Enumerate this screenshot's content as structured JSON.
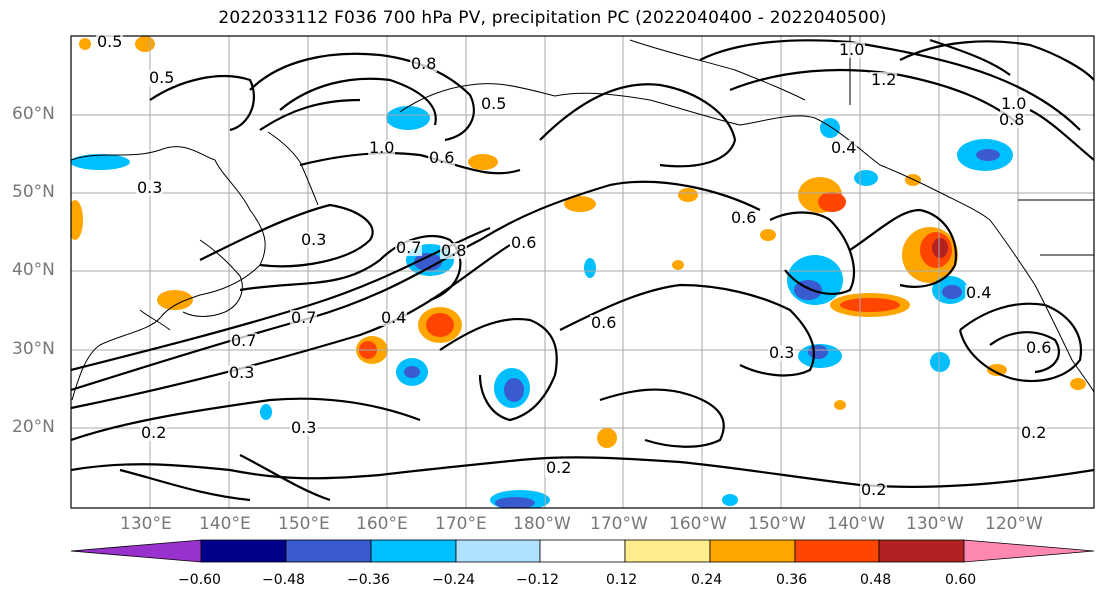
{
  "title": "2022033112 F036 700 hPa PV, precipitation PC (2022040400 - 2022040500)",
  "latitude_labels": [
    "60°N",
    "50°N",
    "40°N",
    "30°N",
    "20°N"
  ],
  "longitude_labels": [
    "130°E",
    "140°E",
    "150°E",
    "160°E",
    "170°E",
    "180°W",
    "170°W",
    "160°W",
    "150°W",
    "140°W",
    "130°W",
    "120°W"
  ],
  "contour_labels": [
    "0.5",
    "0.5",
    "0.5",
    "1.0",
    "1.0",
    "1.0",
    "0.8",
    "0.8",
    "0.8",
    "0.6",
    "0.6",
    "0.6",
    "0.6",
    "0.6",
    "0.7",
    "0.7",
    "0.7",
    "0.4",
    "0.4",
    "0.4",
    "0.3",
    "0.3",
    "0.3",
    "0.3",
    "0.3",
    "0.2",
    "0.2",
    "0.2",
    "0.2",
    "1.2"
  ],
  "colorbar": {
    "tick_labels": [
      "−0.60",
      "−0.48",
      "−0.36",
      "−0.24",
      "−0.12",
      "0.12",
      "0.24",
      "0.36",
      "0.48",
      "0.60"
    ],
    "colors": [
      "#9932cc",
      "#00008b",
      "#3a5bd0",
      "#00bfff",
      "#b0e2ff",
      "#ffffff",
      "#ffec8b",
      "#ffa500",
      "#ff4500",
      "#b22222",
      "#ff88b0"
    ]
  }
}
